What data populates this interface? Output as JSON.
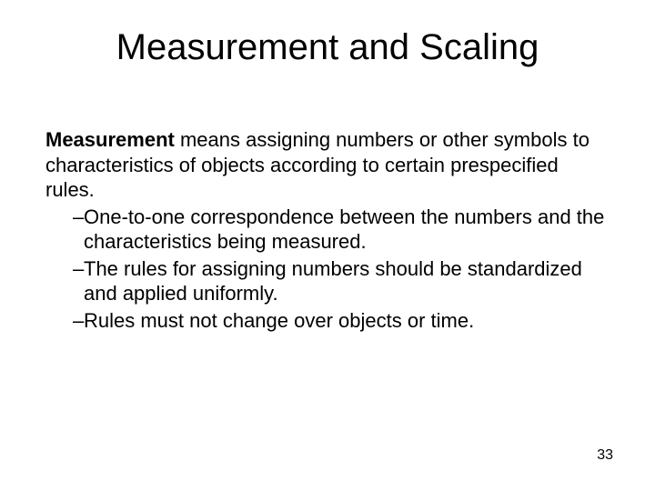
{
  "title": "Measurement and Scaling",
  "term": "Measurement",
  "definition": " means assigning numbers or other symbols to characteristics of objects according to certain prespecified rules.",
  "bullets": [
    "One-to-one correspondence between the numbers and the characteristics being measured.",
    "The rules for assigning numbers should be standardized and applied uniformly.",
    "Rules must not change over objects or time."
  ],
  "dash": "–",
  "page_number": "33",
  "colors": {
    "background": "#ffffff",
    "text": "#000000"
  },
  "font_sizes": {
    "title": 40,
    "body": 22,
    "page_number": 16
  }
}
